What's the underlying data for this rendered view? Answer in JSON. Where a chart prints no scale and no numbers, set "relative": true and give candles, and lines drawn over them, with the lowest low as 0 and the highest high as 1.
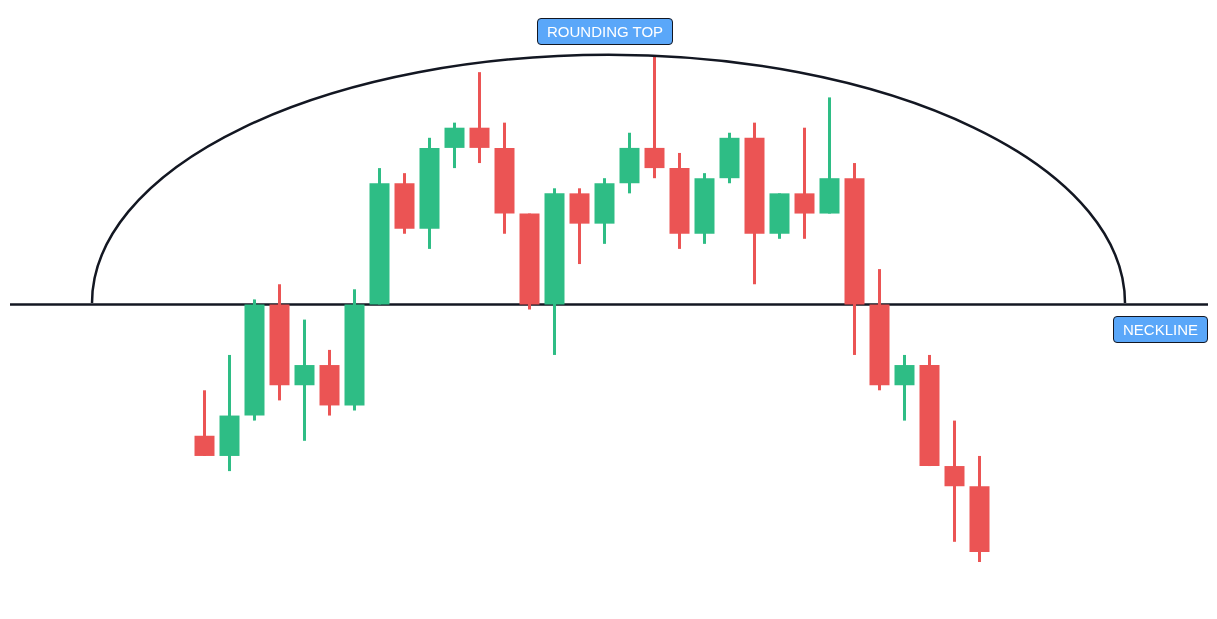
{
  "chart_data": {
    "type": "candlestick",
    "relative": true,
    "categories": [
      null,
      null,
      null,
      null,
      null,
      null,
      null,
      null,
      null,
      null,
      null,
      null,
      null,
      null,
      null,
      null,
      null,
      null,
      null,
      null,
      null,
      null,
      null,
      null,
      null,
      null,
      null,
      null,
      null,
      null,
      null,
      null
    ],
    "ohlc": [
      [
        0.25,
        0.34,
        0.21,
        0.21
      ],
      [
        0.21,
        0.41,
        0.18,
        0.29
      ],
      [
        0.29,
        0.52,
        0.28,
        0.51
      ],
      [
        0.51,
        0.55,
        0.32,
        0.35
      ],
      [
        0.35,
        0.48,
        0.24,
        0.39
      ],
      [
        0.39,
        0.42,
        0.29,
        0.31
      ],
      [
        0.31,
        0.54,
        0.3,
        0.51
      ],
      [
        0.51,
        0.78,
        0.51,
        0.75
      ],
      [
        0.75,
        0.77,
        0.65,
        0.66
      ],
      [
        0.66,
        0.84,
        0.62,
        0.82
      ],
      [
        0.82,
        0.87,
        0.78,
        0.86
      ],
      [
        0.86,
        0.97,
        0.79,
        0.82
      ],
      [
        0.82,
        0.87,
        0.65,
        0.69
      ],
      [
        0.69,
        0.69,
        0.5,
        0.51
      ],
      [
        0.51,
        0.74,
        0.41,
        0.73
      ],
      [
        0.73,
        0.74,
        0.59,
        0.67
      ],
      [
        0.67,
        0.76,
        0.63,
        0.75
      ],
      [
        0.75,
        0.85,
        0.73,
        0.82
      ],
      [
        0.82,
        1.0,
        0.76,
        0.78
      ],
      [
        0.78,
        0.81,
        0.62,
        0.65
      ],
      [
        0.65,
        0.77,
        0.63,
        0.76
      ],
      [
        0.76,
        0.85,
        0.75,
        0.84
      ],
      [
        0.84,
        0.87,
        0.55,
        0.65
      ],
      [
        0.65,
        0.73,
        0.64,
        0.73
      ],
      [
        0.73,
        0.86,
        0.64,
        0.69
      ],
      [
        0.69,
        0.92,
        0.69,
        0.76
      ],
      [
        0.76,
        0.79,
        0.41,
        0.51
      ],
      [
        0.51,
        0.58,
        0.34,
        0.35
      ],
      [
        0.35,
        0.41,
        0.28,
        0.39
      ],
      [
        0.39,
        0.41,
        0.19,
        0.19
      ],
      [
        0.19,
        0.28,
        0.04,
        0.15
      ],
      [
        0.15,
        0.21,
        0.0,
        0.02
      ]
    ],
    "colors": [
      "#eb5454",
      "#2ebd85",
      "#2ebd85",
      "#eb5454",
      "#2ebd85",
      "#eb5454",
      "#2ebd85",
      "#2ebd85",
      "#eb5454",
      "#2ebd85",
      "#2ebd85",
      "#eb5454",
      "#eb5454",
      "#eb5454",
      "#2ebd85",
      "#eb5454",
      "#2ebd85",
      "#2ebd85",
      "#eb5454",
      "#eb5454",
      "#2ebd85",
      "#2ebd85",
      "#eb5454",
      "#2ebd85",
      "#eb5454",
      "#2ebd85",
      "#eb5454",
      "#eb5454",
      "#2ebd85",
      "#eb5454",
      "#eb5454",
      "#eb5454"
    ],
    "ref_lines": [
      {
        "axis": "y",
        "value": 0.51,
        "label": "NECKLINE",
        "color": "#131722"
      }
    ],
    "annotations": [
      "ROUNDING TOP"
    ]
  }
}
